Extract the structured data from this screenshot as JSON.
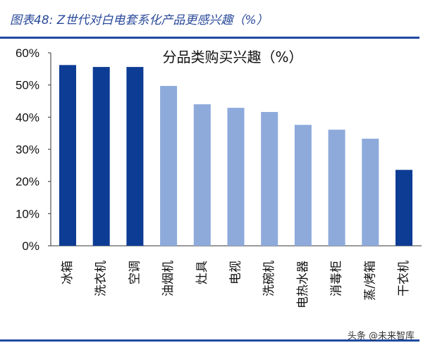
{
  "header": {
    "title": "图表48: Z世代对白电套系化产品更感兴趣（%）"
  },
  "watermark": "头条 @未来智库",
  "chart_data": {
    "type": "bar",
    "title": "分品类购买兴趣（%）",
    "categories": [
      "冰箱",
      "洗衣机",
      "空调",
      "油烟机",
      "灶具",
      "电视",
      "洗碗机",
      "电热水器",
      "消毒柜",
      "蒸/烤箱",
      "干衣机"
    ],
    "values": [
      56.2,
      55.6,
      55.6,
      49.7,
      44.0,
      42.9,
      41.6,
      37.6,
      36.1,
      33.3,
      23.6
    ],
    "highlight": [
      true,
      true,
      true,
      false,
      false,
      false,
      false,
      false,
      false,
      false,
      true
    ],
    "colors": {
      "highlight": "#0d3c94",
      "normal": "#8eaadb"
    },
    "ylim": [
      0,
      60
    ],
    "yticks": [
      "0%",
      "10%",
      "20%",
      "30%",
      "40%",
      "50%",
      "60%"
    ],
    "grid": false
  }
}
